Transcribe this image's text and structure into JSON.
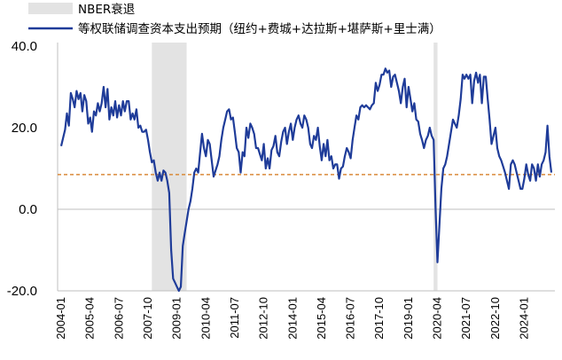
{
  "chart_data": {
    "type": "line",
    "title": "",
    "xlabel": "",
    "ylabel": "",
    "ylim": [
      -20,
      40
    ],
    "yticks": [
      "40.0",
      "20.0",
      "0.0",
      "-20.0"
    ],
    "yticks_values": [
      40,
      20,
      0,
      -20
    ],
    "xticks": [
      "2004-01",
      "2005-04",
      "2006-07",
      "2007-10",
      "2009-01",
      "2010-04",
      "2011-07",
      "2012-10",
      "2014-01",
      "2015-04",
      "2016-07",
      "2017-10",
      "2019-01",
      "2020-04",
      "2021-07",
      "2022-10",
      "2024-01"
    ],
    "legend": {
      "placement": "top-left",
      "recession_label": "NBER衰退",
      "series_label": "等权联储调查资本支出预期（纽约+费城+达拉斯+堪萨斯+里士满）"
    },
    "colors": {
      "series": "#1f3c99",
      "recession": "#e3e3e3",
      "reference_line": "#d98a3a",
      "axis": "#bfbfbf"
    },
    "reference_line": {
      "value": 8.5,
      "style": "dashed"
    },
    "recessions": [
      [
        "2007-12",
        "2009-06"
      ],
      [
        "2020-02",
        "2020-04"
      ]
    ],
    "series": [
      {
        "name": "等权联储调查资本支出预期（纽约+费城+达拉斯+堪萨斯+里士满）",
        "points": [
          [
            "2004-01",
            15.5
          ],
          [
            "2004-02",
            17.5
          ],
          [
            "2004-03",
            19.5
          ],
          [
            "2004-04",
            23.5
          ],
          [
            "2004-05",
            20.5
          ],
          [
            "2004-06",
            28.5
          ],
          [
            "2004-07",
            27
          ],
          [
            "2004-08",
            25
          ],
          [
            "2004-09",
            29
          ],
          [
            "2004-10",
            27
          ],
          [
            "2004-11",
            28.5
          ],
          [
            "2004-12",
            24
          ],
          [
            "2005-01",
            28
          ],
          [
            "2005-02",
            26.5
          ],
          [
            "2005-03",
            21
          ],
          [
            "2005-04",
            22.5
          ],
          [
            "2005-05",
            19
          ],
          [
            "2005-06",
            24
          ],
          [
            "2005-07",
            23
          ],
          [
            "2005-08",
            26
          ],
          [
            "2005-09",
            24
          ],
          [
            "2005-10",
            26
          ],
          [
            "2005-11",
            30
          ],
          [
            "2005-12",
            25
          ],
          [
            "2006-01",
            29.5
          ],
          [
            "2006-02",
            22
          ],
          [
            "2006-03",
            25
          ],
          [
            "2006-04",
            23
          ],
          [
            "2006-05",
            26.5
          ],
          [
            "2006-06",
            22.5
          ],
          [
            "2006-07",
            25.5
          ],
          [
            "2006-08",
            23
          ],
          [
            "2006-09",
            26.5
          ],
          [
            "2006-10",
            24
          ],
          [
            "2006-11",
            26.5
          ],
          [
            "2006-12",
            26.5
          ],
          [
            "2007-01",
            22
          ],
          [
            "2007-02",
            23.5
          ],
          [
            "2007-03",
            22
          ],
          [
            "2007-04",
            24.5
          ],
          [
            "2007-05",
            20
          ],
          [
            "2007-06",
            20.5
          ],
          [
            "2007-07",
            19
          ],
          [
            "2007-08",
            19
          ],
          [
            "2007-09",
            19.5
          ],
          [
            "2007-10",
            17
          ],
          [
            "2007-11",
            14
          ],
          [
            "2007-12",
            11.5
          ],
          [
            "2008-01",
            12
          ],
          [
            "2008-02",
            9
          ],
          [
            "2008-03",
            7
          ],
          [
            "2008-04",
            9
          ],
          [
            "2008-05",
            7
          ],
          [
            "2008-06",
            9.5
          ],
          [
            "2008-07",
            9
          ],
          [
            "2008-08",
            7
          ],
          [
            "2008-09",
            4
          ],
          [
            "2008-10",
            -10
          ],
          [
            "2008-11",
            -17
          ],
          [
            "2008-12",
            -18
          ],
          [
            "2009-01",
            -19
          ],
          [
            "2009-02",
            -20
          ],
          [
            "2009-03",
            -19
          ],
          [
            "2009-04",
            -9
          ],
          [
            "2009-05",
            -6
          ],
          [
            "2009-06",
            -3
          ],
          [
            "2009-07",
            0
          ],
          [
            "2009-08",
            2
          ],
          [
            "2009-09",
            5
          ],
          [
            "2009-10",
            9
          ],
          [
            "2009-11",
            10
          ],
          [
            "2009-12",
            9
          ],
          [
            "2010-01",
            14
          ],
          [
            "2010-02",
            18.5
          ],
          [
            "2010-03",
            15
          ],
          [
            "2010-04",
            13
          ],
          [
            "2010-05",
            17
          ],
          [
            "2010-06",
            16
          ],
          [
            "2010-07",
            12
          ],
          [
            "2010-08",
            8
          ],
          [
            "2010-09",
            9.5
          ],
          [
            "2010-10",
            11
          ],
          [
            "2010-11",
            13
          ],
          [
            "2010-12",
            17
          ],
          [
            "2011-01",
            20
          ],
          [
            "2011-02",
            22
          ],
          [
            "2011-03",
            24
          ],
          [
            "2011-04",
            24.5
          ],
          [
            "2011-05",
            22
          ],
          [
            "2011-06",
            22.5
          ],
          [
            "2011-07",
            19
          ],
          [
            "2011-08",
            15
          ],
          [
            "2011-09",
            14
          ],
          [
            "2011-10",
            9
          ],
          [
            "2011-11",
            14
          ],
          [
            "2011-12",
            13
          ],
          [
            "2012-01",
            20
          ],
          [
            "2012-02",
            17.5
          ],
          [
            "2012-03",
            21
          ],
          [
            "2012-04",
            20
          ],
          [
            "2012-05",
            18.5
          ],
          [
            "2012-06",
            15
          ],
          [
            "2012-07",
            15
          ],
          [
            "2012-08",
            13.5
          ],
          [
            "2012-09",
            12
          ],
          [
            "2012-10",
            16
          ],
          [
            "2012-11",
            10
          ],
          [
            "2012-12",
            12.5
          ],
          [
            "2013-01",
            10
          ],
          [
            "2013-02",
            14.5
          ],
          [
            "2013-03",
            15.5
          ],
          [
            "2013-04",
            18
          ],
          [
            "2013-05",
            14
          ],
          [
            "2013-06",
            13
          ],
          [
            "2013-07",
            16.5
          ],
          [
            "2013-08",
            19
          ],
          [
            "2013-09",
            20
          ],
          [
            "2013-10",
            16
          ],
          [
            "2013-11",
            19
          ],
          [
            "2013-12",
            21
          ],
          [
            "2014-01",
            17
          ],
          [
            "2014-02",
            20
          ],
          [
            "2014-03",
            22
          ],
          [
            "2014-04",
            23
          ],
          [
            "2014-05",
            21
          ],
          [
            "2014-06",
            20
          ],
          [
            "2014-07",
            23
          ],
          [
            "2014-08",
            22
          ],
          [
            "2014-09",
            20
          ],
          [
            "2014-10",
            16
          ],
          [
            "2014-11",
            15
          ],
          [
            "2014-12",
            18
          ],
          [
            "2015-01",
            17
          ],
          [
            "2015-02",
            20
          ],
          [
            "2015-03",
            15.5
          ],
          [
            "2015-04",
            12
          ],
          [
            "2015-05",
            16
          ],
          [
            "2015-06",
            13
          ],
          [
            "2015-07",
            17
          ],
          [
            "2015-08",
            12
          ],
          [
            "2015-09",
            13
          ],
          [
            "2015-10",
            10
          ],
          [
            "2015-11",
            11
          ],
          [
            "2015-12",
            11
          ],
          [
            "2016-01",
            7.5
          ],
          [
            "2016-02",
            10
          ],
          [
            "2016-03",
            10.5
          ],
          [
            "2016-04",
            13
          ],
          [
            "2016-05",
            15
          ],
          [
            "2016-06",
            14
          ],
          [
            "2016-07",
            12.5
          ],
          [
            "2016-08",
            17
          ],
          [
            "2016-09",
            20
          ],
          [
            "2016-10",
            23
          ],
          [
            "2016-11",
            22
          ],
          [
            "2016-12",
            25
          ],
          [
            "2017-01",
            25.5
          ],
          [
            "2017-02",
            25
          ],
          [
            "2017-03",
            25.5
          ],
          [
            "2017-04",
            25
          ],
          [
            "2017-05",
            24.5
          ],
          [
            "2017-06",
            25.5
          ],
          [
            "2017-07",
            26
          ],
          [
            "2017-08",
            31
          ],
          [
            "2017-09",
            29
          ],
          [
            "2017-10",
            30.5
          ],
          [
            "2017-11",
            33
          ],
          [
            "2017-12",
            33
          ],
          [
            "2018-01",
            34.5
          ],
          [
            "2018-02",
            33.5
          ],
          [
            "2018-03",
            34
          ],
          [
            "2018-04",
            30
          ],
          [
            "2018-05",
            32.5
          ],
          [
            "2018-06",
            33
          ],
          [
            "2018-07",
            31
          ],
          [
            "2018-08",
            29
          ],
          [
            "2018-09",
            26
          ],
          [
            "2018-10",
            30
          ],
          [
            "2018-11",
            32
          ],
          [
            "2018-12",
            25
          ],
          [
            "2019-01",
            30
          ],
          [
            "2019-02",
            27
          ],
          [
            "2019-03",
            24
          ],
          [
            "2019-04",
            26
          ],
          [
            "2019-05",
            22
          ],
          [
            "2019-06",
            21.5
          ],
          [
            "2019-07",
            18.5
          ],
          [
            "2019-08",
            17
          ],
          [
            "2019-09",
            15
          ],
          [
            "2019-10",
            17
          ],
          [
            "2019-11",
            18
          ],
          [
            "2019-12",
            20
          ],
          [
            "2020-01",
            18
          ],
          [
            "2020-02",
            17
          ],
          [
            "2020-03",
            0
          ],
          [
            "2020-04",
            -13
          ],
          [
            "2020-05",
            -4
          ],
          [
            "2020-06",
            5
          ],
          [
            "2020-07",
            10
          ],
          [
            "2020-08",
            11
          ],
          [
            "2020-09",
            13
          ],
          [
            "2020-10",
            16
          ],
          [
            "2020-11",
            19
          ],
          [
            "2020-12",
            22
          ],
          [
            "2021-01",
            21
          ],
          [
            "2021-02",
            20
          ],
          [
            "2021-03",
            23
          ],
          [
            "2021-04",
            27
          ],
          [
            "2021-05",
            33
          ],
          [
            "2021-06",
            32
          ],
          [
            "2021-07",
            33
          ],
          [
            "2021-08",
            32
          ],
          [
            "2021-09",
            33
          ],
          [
            "2021-10",
            26
          ],
          [
            "2021-11",
            31.5
          ],
          [
            "2021-12",
            33.5
          ],
          [
            "2022-01",
            31
          ],
          [
            "2022-02",
            33
          ],
          [
            "2022-03",
            26
          ],
          [
            "2022-04",
            32.5
          ],
          [
            "2022-05",
            32.5
          ],
          [
            "2022-06",
            27
          ],
          [
            "2022-07",
            22
          ],
          [
            "2022-08",
            16
          ],
          [
            "2022-09",
            18
          ],
          [
            "2022-10",
            20
          ],
          [
            "2022-11",
            15
          ],
          [
            "2022-12",
            13
          ],
          [
            "2023-01",
            12
          ],
          [
            "2023-02",
            10.5
          ],
          [
            "2023-03",
            9
          ],
          [
            "2023-04",
            7
          ],
          [
            "2023-05",
            5
          ],
          [
            "2023-06",
            11
          ],
          [
            "2023-07",
            12
          ],
          [
            "2023-08",
            11
          ],
          [
            "2023-09",
            9
          ],
          [
            "2023-10",
            7
          ],
          [
            "2023-11",
            5
          ],
          [
            "2023-12",
            5
          ],
          [
            "2024-01",
            7.5
          ],
          [
            "2024-02",
            11
          ],
          [
            "2024-03",
            8.5
          ],
          [
            "2024-04",
            7
          ],
          [
            "2024-05",
            11
          ],
          [
            "2024-06",
            10
          ],
          [
            "2024-07",
            7
          ],
          [
            "2024-08",
            11
          ],
          [
            "2024-09",
            8
          ],
          [
            "2024-10",
            11
          ],
          [
            "2024-11",
            12
          ],
          [
            "2024-12",
            14
          ],
          [
            "2025-01",
            20.5
          ],
          [
            "2025-02",
            13
          ],
          [
            "2025-03",
            9
          ]
        ]
      }
    ]
  }
}
